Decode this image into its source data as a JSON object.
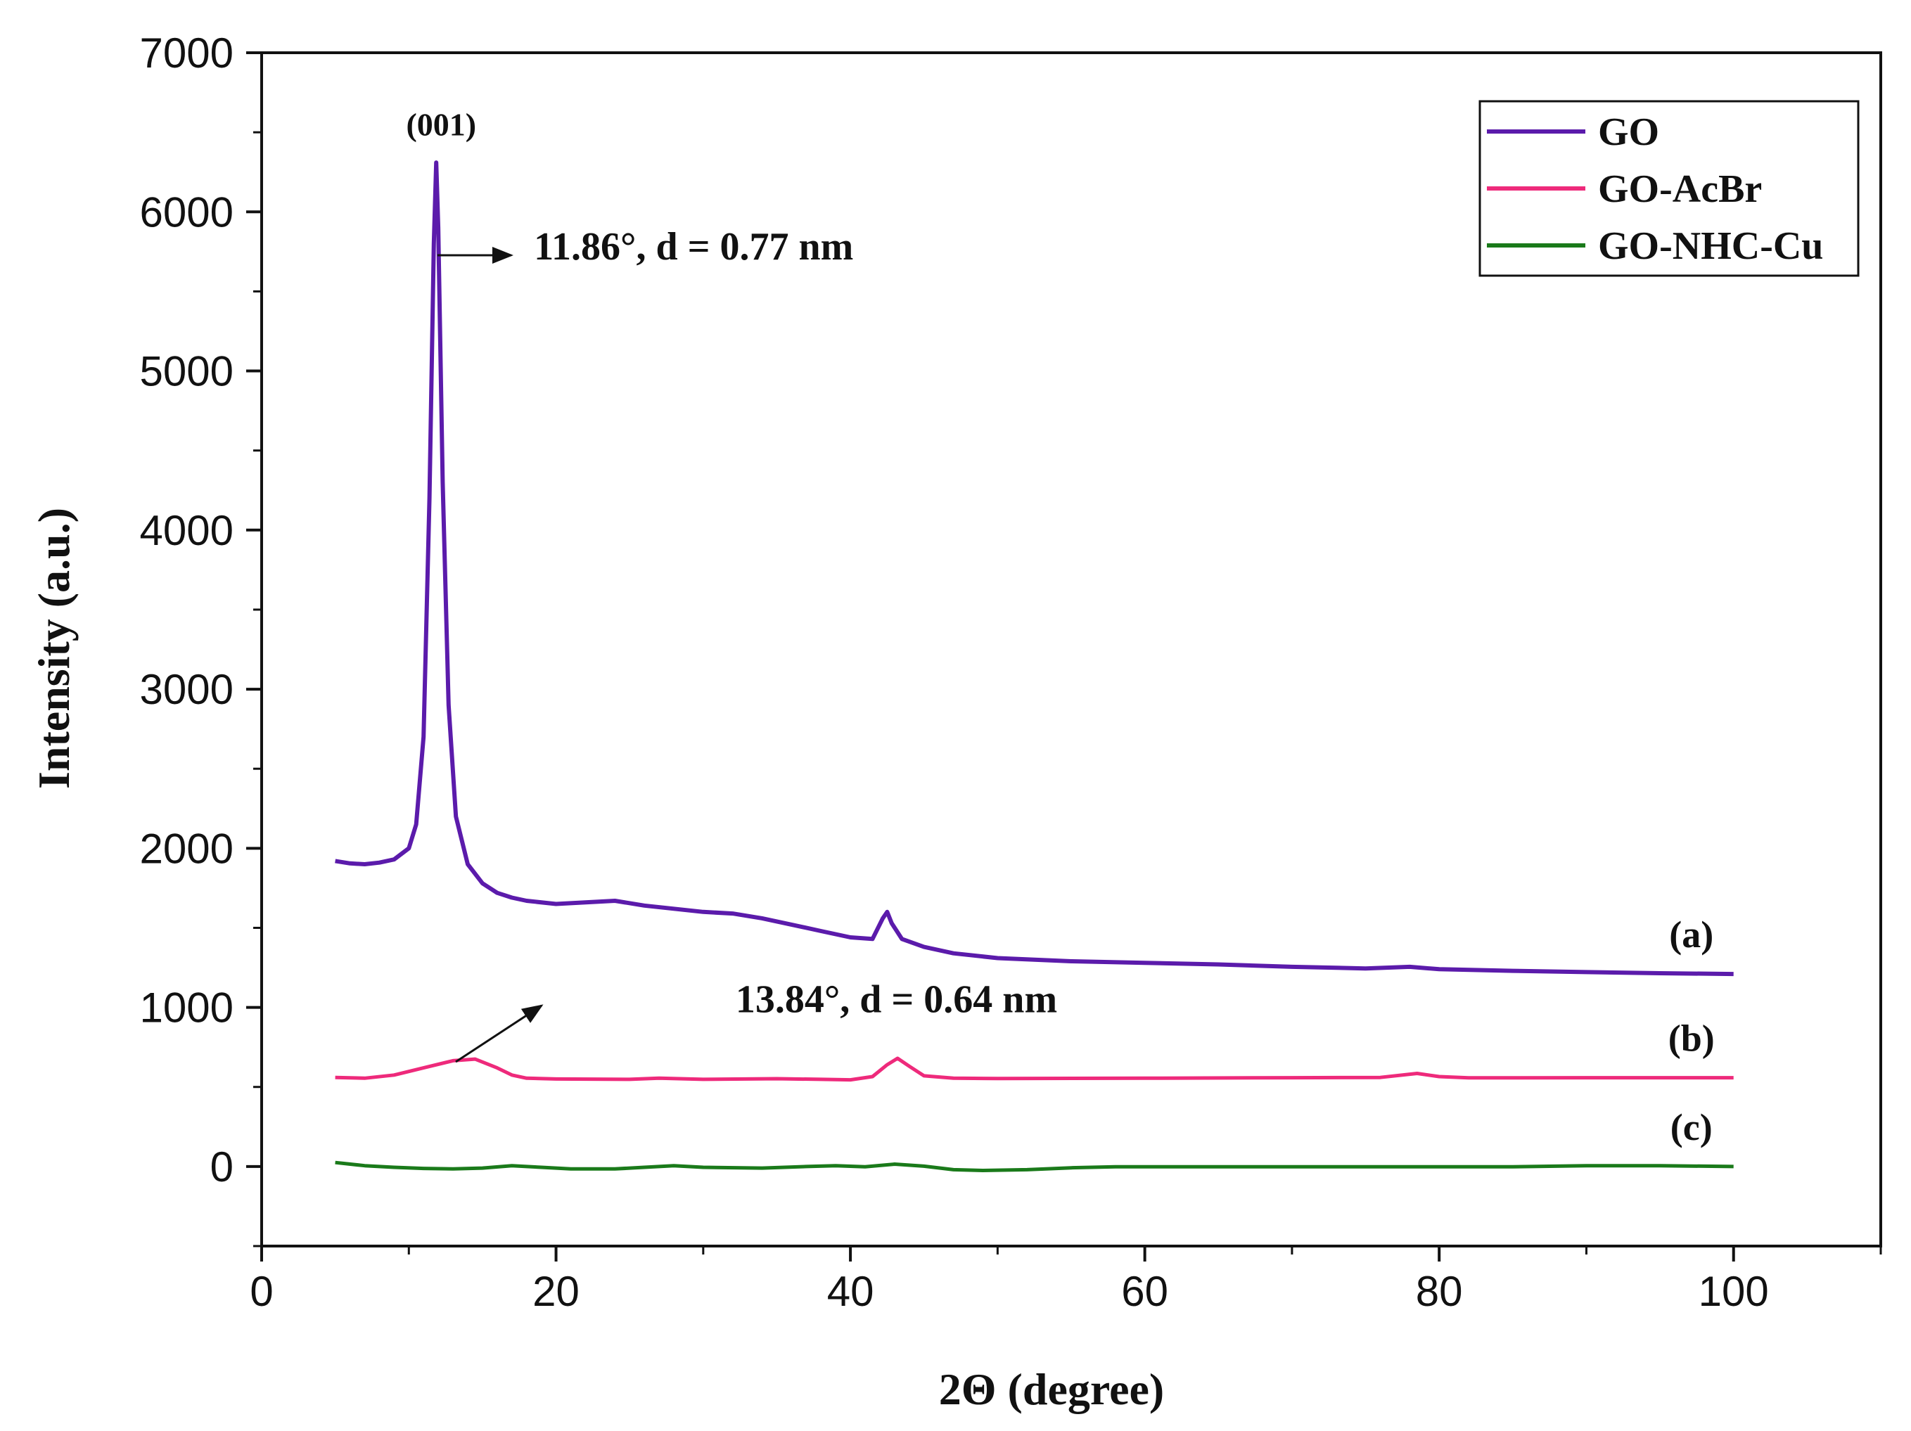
{
  "chart_data": {
    "type": "line",
    "title": "",
    "xlabel": "2Θ (degree)",
    "ylabel": "Intensity (a.u.)",
    "xlim": [
      0,
      110
    ],
    "ylim": [
      -500,
      7000
    ],
    "x_ticks": [
      "0",
      "20",
      "40",
      "60",
      "80",
      "100"
    ],
    "y_ticks": [
      "0",
      "1000",
      "2000",
      "3000",
      "4000",
      "5000",
      "6000",
      "7000"
    ],
    "x_tick_values": [
      0,
      20,
      40,
      60,
      80,
      100
    ],
    "y_tick_values": [
      0,
      1000,
      2000,
      3000,
      4000,
      5000,
      6000,
      7000
    ],
    "grid": false,
    "legend_position": "top-right",
    "series": [
      {
        "name": "GO",
        "label": "(a)",
        "color": "#5b1bab",
        "points": [
          [
            5,
            1920
          ],
          [
            6,
            1905
          ],
          [
            7,
            1900
          ],
          [
            8,
            1910
          ],
          [
            9,
            1930
          ],
          [
            10,
            2000
          ],
          [
            10.5,
            2150
          ],
          [
            11,
            2700
          ],
          [
            11.4,
            4200
          ],
          [
            11.7,
            5800
          ],
          [
            11.86,
            6310
          ],
          [
            12.0,
            5900
          ],
          [
            12.3,
            4300
          ],
          [
            12.7,
            2900
          ],
          [
            13.2,
            2200
          ],
          [
            14,
            1900
          ],
          [
            15,
            1780
          ],
          [
            16,
            1720
          ],
          [
            17,
            1690
          ],
          [
            18,
            1670
          ],
          [
            20,
            1650
          ],
          [
            22,
            1660
          ],
          [
            24,
            1670
          ],
          [
            26,
            1640
          ],
          [
            28,
            1620
          ],
          [
            30,
            1600
          ],
          [
            32,
            1590
          ],
          [
            34,
            1560
          ],
          [
            36,
            1520
          ],
          [
            38,
            1480
          ],
          [
            40,
            1440
          ],
          [
            41.5,
            1430
          ],
          [
            42.2,
            1560
          ],
          [
            42.5,
            1600
          ],
          [
            42.8,
            1530
          ],
          [
            43.5,
            1430
          ],
          [
            45,
            1380
          ],
          [
            47,
            1340
          ],
          [
            50,
            1310
          ],
          [
            55,
            1290
          ],
          [
            60,
            1280
          ],
          [
            65,
            1270
          ],
          [
            70,
            1255
          ],
          [
            75,
            1245
          ],
          [
            78,
            1255
          ],
          [
            80,
            1240
          ],
          [
            85,
            1230
          ],
          [
            90,
            1222
          ],
          [
            95,
            1215
          ],
          [
            100,
            1210
          ]
        ]
      },
      {
        "name": "GO-AcBr",
        "label": "(b)",
        "color": "#ee2a7b",
        "points": [
          [
            5,
            560
          ],
          [
            7,
            555
          ],
          [
            9,
            575
          ],
          [
            11,
            620
          ],
          [
            13,
            665
          ],
          [
            14.5,
            675
          ],
          [
            16,
            620
          ],
          [
            17,
            575
          ],
          [
            18,
            555
          ],
          [
            20,
            550
          ],
          [
            25,
            548
          ],
          [
            27,
            555
          ],
          [
            30,
            548
          ],
          [
            35,
            552
          ],
          [
            38,
            548
          ],
          [
            40,
            545
          ],
          [
            41.5,
            565
          ],
          [
            42.5,
            640
          ],
          [
            43.2,
            680
          ],
          [
            44,
            630
          ],
          [
            45,
            570
          ],
          [
            47,
            555
          ],
          [
            50,
            553
          ],
          [
            60,
            555
          ],
          [
            70,
            558
          ],
          [
            76,
            560
          ],
          [
            78.5,
            585
          ],
          [
            80,
            565
          ],
          [
            82,
            557
          ],
          [
            90,
            558
          ],
          [
            100,
            558
          ]
        ]
      },
      {
        "name": "GO-NHC-Cu",
        "label": "(c)",
        "color": "#1a7a1a",
        "points": [
          [
            5,
            25
          ],
          [
            7,
            5
          ],
          [
            9,
            -5
          ],
          [
            11,
            -12
          ],
          [
            13,
            -15
          ],
          [
            15,
            -10
          ],
          [
            17,
            5
          ],
          [
            19,
            -5
          ],
          [
            21,
            -15
          ],
          [
            24,
            -15
          ],
          [
            26,
            -5
          ],
          [
            28,
            5
          ],
          [
            30,
            -5
          ],
          [
            34,
            -10
          ],
          [
            37,
            0
          ],
          [
            39,
            5
          ],
          [
            41,
            -2
          ],
          [
            43,
            15
          ],
          [
            45,
            2
          ],
          [
            47,
            -20
          ],
          [
            49,
            -25
          ],
          [
            52,
            -20
          ],
          [
            55,
            -8
          ],
          [
            58,
            -2
          ],
          [
            65,
            -2
          ],
          [
            75,
            -2
          ],
          [
            85,
            -2
          ],
          [
            90,
            5
          ],
          [
            95,
            5
          ],
          [
            100,
            0
          ]
        ]
      }
    ],
    "annotations": [
      {
        "text": "(001)",
        "x": 12.2,
        "y": 6480
      },
      {
        "text": "11.86°, d = 0.77 nm",
        "x": 18.5,
        "y": 5700
      },
      {
        "text": "13.84°, d = 0.64 nm",
        "x": 32.2,
        "y": 970
      }
    ]
  }
}
